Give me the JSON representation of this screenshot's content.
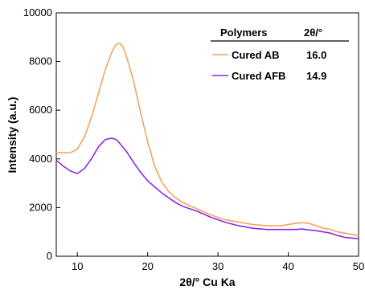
{
  "chart_data": {
    "type": "line",
    "xlabel": "2θ/° Cu Ka",
    "ylabel": "Intensity (a.u.)",
    "xlim": [
      7,
      50
    ],
    "ylim": [
      0,
      10000
    ],
    "x_ticks": [
      10,
      20,
      30,
      40,
      50
    ],
    "y_ticks": [
      0,
      2000,
      4000,
      6000,
      8000,
      10000
    ],
    "grid": false,
    "legend": {
      "placement": "top-right",
      "header_name": "Polymers",
      "header_value": "2θ/°"
    },
    "series": [
      {
        "name": "Cured AB",
        "value": "16.0",
        "color": "#f4a460",
        "x": [
          7,
          8,
          9,
          10,
          11,
          12,
          13,
          14,
          15,
          15.5,
          16,
          16.5,
          17,
          18,
          19,
          20,
          21,
          22,
          23,
          24,
          25,
          27,
          29,
          31,
          33,
          35,
          37,
          39,
          41,
          42,
          43,
          44,
          45,
          46,
          47,
          48,
          49,
          50
        ],
        "y": [
          4250,
          4250,
          4250,
          4400,
          4900,
          5700,
          6700,
          7700,
          8450,
          8700,
          8750,
          8600,
          8200,
          7200,
          5900,
          4700,
          3700,
          3050,
          2650,
          2400,
          2200,
          1950,
          1700,
          1500,
          1400,
          1300,
          1250,
          1250,
          1350,
          1380,
          1350,
          1250,
          1150,
          1100,
          1000,
          950,
          900,
          850
        ]
      },
      {
        "name": "Cured AFB",
        "value": "14.9",
        "color": "#8a2be2",
        "x": [
          7,
          8,
          9,
          10,
          11,
          12,
          13,
          14,
          14.9,
          15.5,
          16,
          17,
          18,
          19,
          20,
          21,
          22,
          23,
          24,
          25,
          27,
          29,
          31,
          33,
          35,
          37,
          39,
          41,
          42,
          43,
          44,
          45,
          46,
          47,
          48,
          49,
          50
        ],
        "y": [
          3950,
          3700,
          3500,
          3400,
          3600,
          4000,
          4500,
          4800,
          4850,
          4800,
          4650,
          4300,
          3850,
          3450,
          3100,
          2850,
          2600,
          2400,
          2200,
          2050,
          1850,
          1600,
          1400,
          1250,
          1150,
          1100,
          1100,
          1100,
          1120,
          1080,
          1050,
          1000,
          950,
          850,
          780,
          750,
          720
        ]
      }
    ]
  }
}
